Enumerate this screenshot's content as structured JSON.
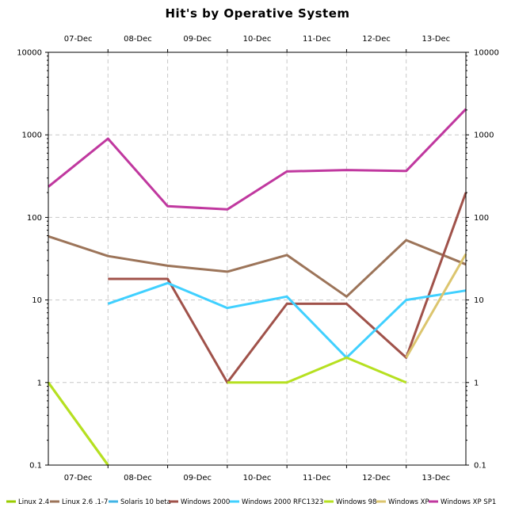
{
  "chart_data": {
    "type": "line",
    "title": "Hit's by Operative System",
    "xlabel": "",
    "ylabel": "",
    "y_scale": "log",
    "ylim": [
      0.1,
      10000
    ],
    "y_ticks": [
      "0.1",
      "1",
      "10",
      "100",
      "1000",
      "10000"
    ],
    "categories": [
      "07-Dec",
      "08-Dec",
      "09-Dec",
      "10-Dec",
      "11-Dec",
      "12-Dec",
      "13-Dec",
      ""
    ],
    "x_tick_labels": [
      "07-Dec",
      "08-Dec",
      "09-Dec",
      "10-Dec",
      "11-Dec",
      "12-Dec",
      "13-Dec"
    ],
    "grid": true,
    "legend_position": "bottom",
    "series": [
      {
        "name": "Linux 2.4",
        "color": "#99cc00",
        "values": [
          1,
          0.1,
          null,
          null,
          null,
          null,
          null,
          null
        ]
      },
      {
        "name": "Linux 2.6 .1-7",
        "color": "#9c7459",
        "values": [
          59,
          34,
          26,
          22,
          35,
          11,
          53,
          27
        ]
      },
      {
        "name": "Solaris 10 beta",
        "color": "#40b4e6",
        "values": [
          null,
          null,
          null,
          null,
          null,
          null,
          null,
          null
        ]
      },
      {
        "name": "Windows 2000",
        "color": "#a0524a",
        "values": [
          null,
          18,
          18,
          1,
          9,
          9,
          2,
          200
        ]
      },
      {
        "name": "Windows 2000 RFC1323",
        "color": "#40d0ff",
        "values": [
          null,
          9,
          16,
          8,
          11,
          2,
          10,
          13
        ]
      },
      {
        "name": "Windows 98",
        "color": "#b6e020",
        "values": [
          1,
          0.1,
          null,
          1,
          1,
          2,
          1,
          null
        ]
      },
      {
        "name": "Windows XP",
        "color": "#dcc56e",
        "values": [
          null,
          null,
          null,
          null,
          null,
          null,
          2,
          36
        ]
      },
      {
        "name": "Windows XP SP1",
        "color": "#c0389f",
        "values": [
          235,
          900,
          137,
          125,
          360,
          375,
          365,
          2050
        ]
      }
    ]
  }
}
